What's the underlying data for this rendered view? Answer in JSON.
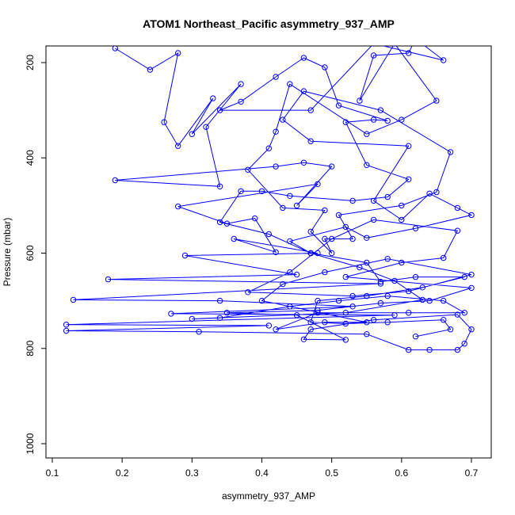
{
  "chart_data": {
    "type": "scatter",
    "title": "ATOM1 Northeast_Pacific asymmetry_937_AMP",
    "xlabel": "asymmetry_937_AMP",
    "ylabel": "Pressure (mbar)",
    "xlim": [
      0.1,
      0.7
    ],
    "ylim": [
      1000,
      200
    ],
    "x_ticks": [
      "0.1",
      "0.2",
      "0.3",
      "0.4",
      "0.5",
      "0.6",
      "0.7"
    ],
    "y_ticks": [
      "200",
      "400",
      "600",
      "800",
      "1000"
    ],
    "y_axis_inverted": true,
    "grid": false,
    "legend": "none",
    "series_color": "#0000ff",
    "marker": "open-circle",
    "connect_points": true,
    "series": [
      {
        "points": [
          [
            0.19,
            170
          ],
          [
            0.24,
            215
          ],
          [
            0.28,
            180
          ],
          [
            0.26,
            325
          ],
          [
            0.28,
            375
          ],
          [
            0.33,
            275
          ],
          [
            0.3,
            350
          ],
          [
            0.37,
            245
          ],
          [
            0.32,
            335
          ],
          [
            0.34,
            460
          ],
          [
            0.19,
            447
          ],
          [
            0.42,
            418
          ],
          [
            0.46,
            410
          ],
          [
            0.5,
            418
          ],
          [
            0.45,
            500
          ],
          [
            0.48,
            455
          ],
          [
            0.28,
            502
          ],
          [
            0.35,
            538
          ],
          [
            0.39,
            527
          ],
          [
            0.42,
            598
          ],
          [
            0.36,
            570
          ],
          [
            0.48,
            600
          ],
          [
            0.29,
            605
          ],
          [
            0.45,
            645
          ],
          [
            0.18,
            655
          ],
          [
            0.57,
            664
          ],
          [
            0.13,
            698
          ],
          [
            0.34,
            700
          ],
          [
            0.53,
            712
          ],
          [
            0.27,
            727
          ],
          [
            0.59,
            730
          ],
          [
            0.12,
            750
          ],
          [
            0.41,
            752
          ],
          [
            0.12,
            763
          ],
          [
            0.31,
            765
          ],
          [
            0.55,
            770
          ],
          [
            0.61,
            803
          ],
          [
            0.64,
            803
          ],
          [
            0.68,
            803
          ],
          [
            0.69,
            790
          ],
          [
            0.7,
            760
          ],
          [
            0.68,
            729
          ],
          [
            0.56,
            740
          ],
          [
            0.47,
            760
          ],
          [
            0.46,
            781
          ],
          [
            0.52,
            782
          ],
          [
            0.45,
            730
          ],
          [
            0.35,
            725
          ],
          [
            0.48,
            720
          ],
          [
            0.57,
            705
          ],
          [
            0.64,
            700
          ],
          [
            0.7,
            673
          ],
          [
            0.52,
            650
          ],
          [
            0.6,
            620
          ],
          [
            0.66,
            610
          ],
          [
            0.68,
            553
          ],
          [
            0.56,
            530
          ],
          [
            0.5,
            570
          ],
          [
            0.44,
            640
          ],
          [
            0.38,
            682
          ],
          [
            0.53,
            690
          ],
          [
            0.61,
            680
          ],
          [
            0.7,
            645
          ],
          [
            0.58,
            612
          ],
          [
            0.49,
            640
          ],
          [
            0.43,
            665
          ],
          [
            0.4,
            700
          ],
          [
            0.55,
            745
          ],
          [
            0.49,
            745
          ],
          [
            0.42,
            760
          ],
          [
            0.48,
            725
          ],
          [
            0.61,
            725
          ],
          [
            0.69,
            725
          ],
          [
            0.66,
            700
          ],
          [
            0.58,
            690
          ],
          [
            0.51,
            700
          ],
          [
            0.44,
            712
          ],
          [
            0.34,
            736
          ],
          [
            0.3,
            738
          ],
          [
            0.52,
            725
          ],
          [
            0.63,
            698
          ],
          [
            0.59,
            658
          ],
          [
            0.54,
            630
          ],
          [
            0.47,
            600
          ],
          [
            0.41,
            560
          ],
          [
            0.34,
            535
          ],
          [
            0.37,
            470
          ],
          [
            0.4,
            470
          ],
          [
            0.44,
            480
          ],
          [
            0.53,
            490
          ],
          [
            0.58,
            482
          ],
          [
            0.61,
            445
          ],
          [
            0.55,
            415
          ],
          [
            0.52,
            325
          ],
          [
            0.56,
            320
          ],
          [
            0.58,
            322
          ],
          [
            0.51,
            290
          ],
          [
            0.49,
            210
          ],
          [
            0.46,
            190
          ],
          [
            0.42,
            230
          ],
          [
            0.37,
            282
          ],
          [
            0.34,
            300
          ],
          [
            0.47,
            300
          ],
          [
            0.56,
            160
          ],
          [
            0.66,
            195
          ],
          [
            0.62,
            150
          ],
          [
            0.61,
            180
          ],
          [
            0.56,
            185
          ],
          [
            0.54,
            280
          ],
          [
            0.59,
            160
          ],
          [
            0.65,
            280
          ],
          [
            0.6,
            320
          ],
          [
            0.55,
            350
          ],
          [
            0.44,
            245
          ],
          [
            0.42,
            345
          ],
          [
            0.41,
            380
          ],
          [
            0.38,
            425
          ],
          [
            0.43,
            505
          ],
          [
            0.49,
            510
          ],
          [
            0.47,
            555
          ],
          [
            0.5,
            600
          ],
          [
            0.49,
            570
          ],
          [
            0.53,
            570
          ],
          [
            0.51,
            520
          ],
          [
            0.6,
            500
          ],
          [
            0.65,
            472
          ],
          [
            0.67,
            388
          ],
          [
            0.57,
            300
          ],
          [
            0.46,
            260
          ],
          [
            0.43,
            320
          ],
          [
            0.47,
            365
          ],
          [
            0.61,
            375
          ],
          [
            0.56,
            490
          ],
          [
            0.6,
            530
          ],
          [
            0.64,
            475
          ],
          [
            0.68,
            505
          ],
          [
            0.7,
            520
          ],
          [
            0.62,
            548
          ],
          [
            0.55,
            568
          ],
          [
            0.52,
            545
          ],
          [
            0.44,
            575
          ],
          [
            0.47,
            600
          ],
          [
            0.55,
            620
          ],
          [
            0.57,
            660
          ],
          [
            0.62,
            650
          ],
          [
            0.69,
            650
          ],
          [
            0.63,
            672
          ],
          [
            0.55,
            690
          ],
          [
            0.48,
            700
          ],
          [
            0.47,
            745
          ],
          [
            0.52,
            748
          ],
          [
            0.58,
            745
          ],
          [
            0.66,
            740
          ],
          [
            0.67,
            760
          ],
          [
            0.62,
            775
          ]
        ]
      }
    ]
  }
}
